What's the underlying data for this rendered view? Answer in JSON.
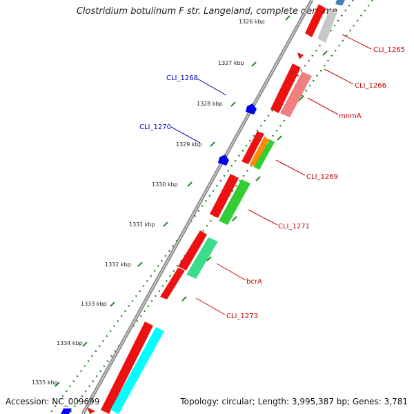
{
  "title": "Clostridium botulinum F str. Langeland, complete genome",
  "footer": {
    "accession": "Accession: NC_009699",
    "summary": "Topology: circular; Length: 3,995,387 bp; Genes: 3,781"
  },
  "scale": {
    "ticks": [
      "1326 kbp",
      "1327 kbp",
      "1328 kbp",
      "1329 kbp",
      "1330 kbp",
      "1331 kbp",
      "1332 kbp",
      "1333 kbp",
      "1334 kbp",
      "1335 kbp"
    ]
  },
  "labels": {
    "cli_1265": "CLI_1265",
    "cli_1266": "CLI_1266",
    "mnmA": "mnmA",
    "cli_1268": "CLI_1268",
    "cli_1269": "CLI_1269",
    "cli_1270": "CLI_1270",
    "cli_1271": "CLI_1271",
    "bcrA": "bcrA",
    "cli_1273": "CLI_1273"
  },
  "colors": {
    "forward_cds": "#ff0000",
    "reverse_cds": "#0000ff",
    "label_forward": "#cc0000",
    "label_reverse": "#0000cc",
    "backbone": "#808080",
    "tick": "#228b22"
  }
}
